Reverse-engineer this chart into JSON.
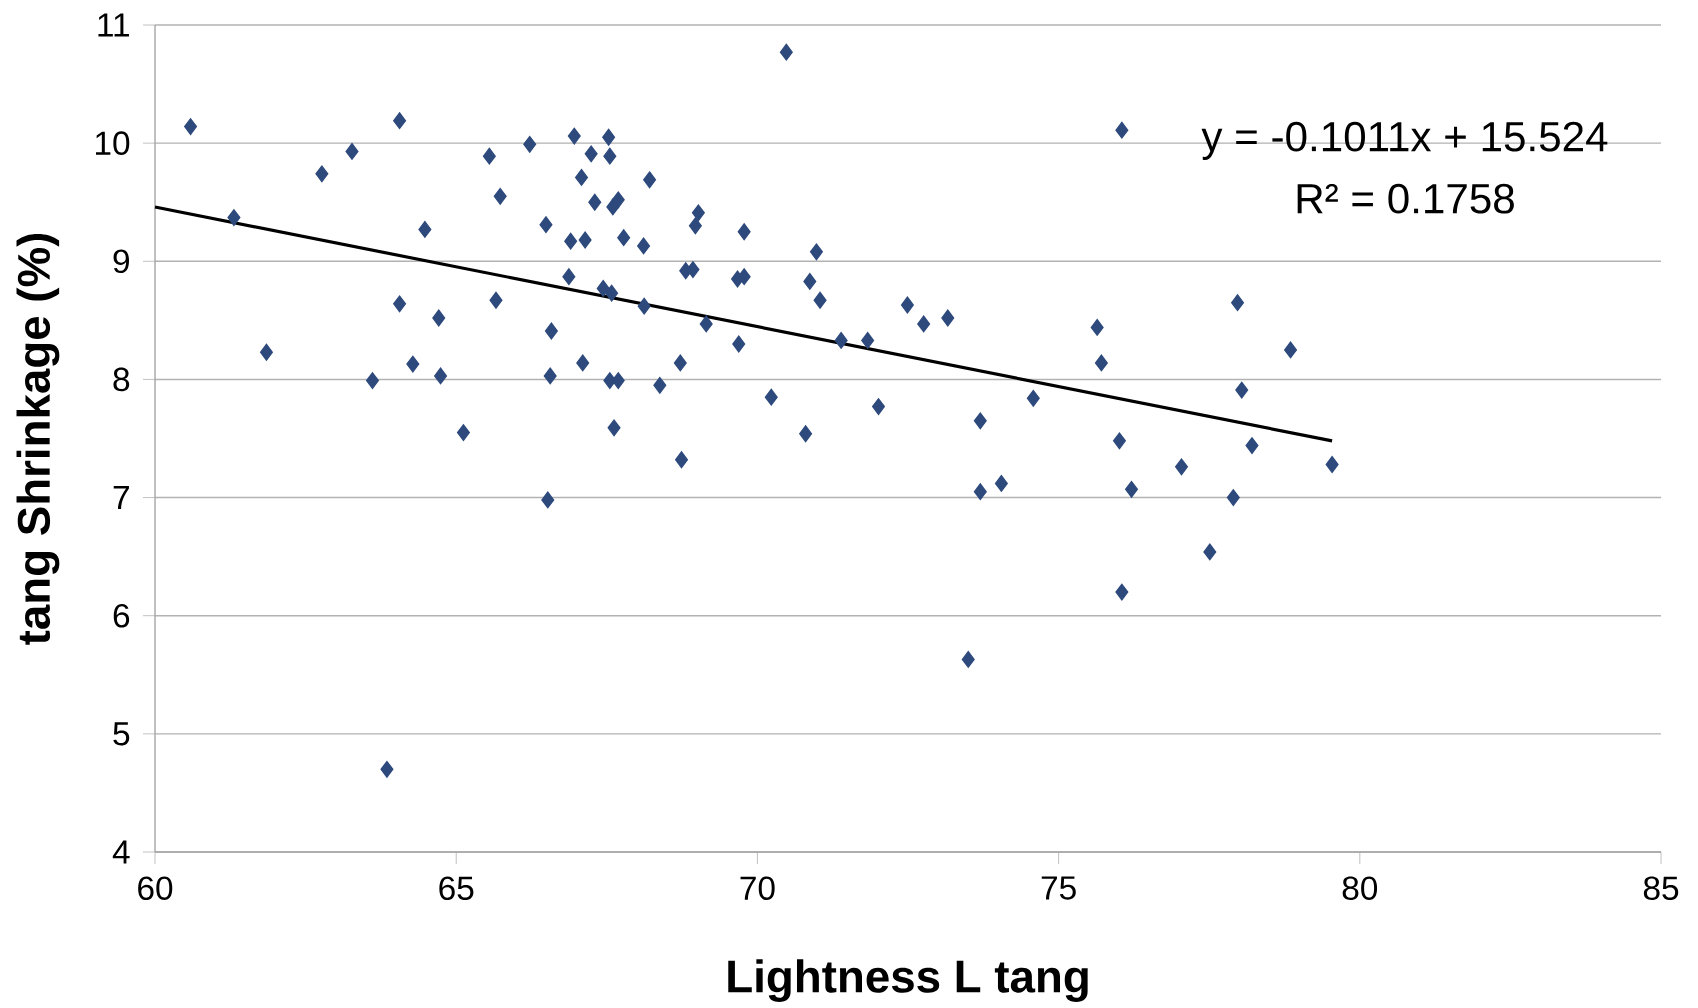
{
  "chart_data": {
    "type": "scatter",
    "xlabel": "Lightness L tang",
    "ylabel": "tang Shrinkage (%)",
    "xlim": [
      60,
      85
    ],
    "xticks": [
      60,
      65,
      70,
      75,
      80,
      85
    ],
    "ylim": [
      4,
      11
    ],
    "yticks": [
      4,
      5,
      6,
      7,
      8,
      9,
      10,
      11
    ],
    "grid": "y",
    "annotations": [
      "y = -0.1011x + 15.524",
      "R² = 0.1758"
    ],
    "series": [
      {
        "marker": "diamond",
        "color": "#2e4a7d",
        "x": [
          60.59,
          61.31,
          61.85,
          62.77,
          63.27,
          63.61,
          63.85,
          64.06,
          64.06,
          64.28,
          64.48,
          64.71,
          64.74,
          65.12,
          65.55,
          65.66,
          65.73,
          66.22,
          66.49,
          66.52,
          66.58,
          66.56,
          66.87,
          66.9,
          66.96,
          67.08,
          67.14,
          67.1,
          67.24,
          67.3,
          67.44,
          67.53,
          67.55,
          67.55,
          67.58,
          67.62,
          67.6,
          67.69,
          67.69,
          67.78,
          68.11,
          68.12,
          68.21,
          68.38,
          68.72,
          68.74,
          68.81,
          68.93,
          68.97,
          69.02,
          69.15,
          69.67,
          69.69,
          69.78,
          69.78,
          70.23,
          70.48,
          70.8,
          70.87,
          70.98,
          71.04,
          71.39,
          71.83,
          72.01,
          72.49,
          72.76,
          73.16,
          73.5,
          73.7,
          73.7,
          74.05,
          74.58,
          75.64,
          75.71,
          76.01,
          76.05,
          76.05,
          76.21,
          77.04,
          77.51,
          77.9,
          77.97,
          78.04,
          78.21,
          78.85,
          79.54
        ],
        "values": [
          10.14,
          9.37,
          8.23,
          9.74,
          9.93,
          7.99,
          4.7,
          10.19,
          8.64,
          8.13,
          9.27,
          8.52,
          8.03,
          7.55,
          9.89,
          8.67,
          9.55,
          9.99,
          9.31,
          6.98,
          8.41,
          8.03,
          8.87,
          9.17,
          10.06,
          9.71,
          9.18,
          8.14,
          9.91,
          9.5,
          8.77,
          10.05,
          9.89,
          7.99,
          8.73,
          7.59,
          9.46,
          9.52,
          7.99,
          9.2,
          9.13,
          8.62,
          9.69,
          7.95,
          8.14,
          7.32,
          8.92,
          8.93,
          9.3,
          9.41,
          8.47,
          8.85,
          8.3,
          8.87,
          9.25,
          7.85,
          10.77,
          7.54,
          8.83,
          9.08,
          8.67,
          8.33,
          8.33,
          7.77,
          8.63,
          8.47,
          8.52,
          5.63,
          7.65,
          7.05,
          7.12,
          7.84,
          8.44,
          8.14,
          7.48,
          10.11,
          6.2,
          7.07,
          7.26,
          6.54,
          7.0,
          8.65,
          7.91,
          7.44,
          8.25,
          7.28
        ]
      },
      {
        "type": "line",
        "color": "#000000",
        "x": [
          60,
          79.54
        ],
        "values": [
          9.46,
          7.48
        ]
      }
    ]
  }
}
